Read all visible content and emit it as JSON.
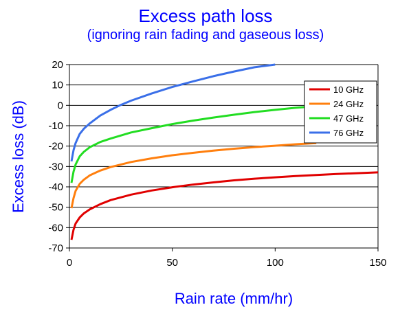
{
  "chart_data": {
    "type": "line",
    "title": "Excess path loss",
    "subtitle": "(ignoring rain fading and gaseous loss)",
    "xlabel": "Rain rate (mm/hr)",
    "ylabel": "Excess loss (dB)",
    "xlim": [
      0,
      150
    ],
    "ylim": [
      -70,
      20
    ],
    "xticks": [
      0,
      50,
      100,
      150
    ],
    "yticks": [
      20,
      10,
      0,
      -10,
      -20,
      -30,
      -40,
      -50,
      -60,
      -70
    ],
    "grid": "horizontal",
    "legend_position": "top-right",
    "series": [
      {
        "name": "10 GHz",
        "color": "#e00000",
        "x": [
          1,
          2,
          3,
          5,
          7,
          10,
          15,
          20,
          30,
          40,
          50,
          60,
          70,
          80,
          90,
          100,
          110,
          120,
          130,
          140,
          150
        ],
        "y": [
          -66,
          -61,
          -58,
          -55,
          -53,
          -51,
          -48.5,
          -46.5,
          -43.8,
          -41.8,
          -40.2,
          -38.9,
          -37.8,
          -36.8,
          -36.0,
          -35.3,
          -34.7,
          -34.2,
          -33.7,
          -33.3,
          -32.9
        ]
      },
      {
        "name": "24 GHz",
        "color": "#ff7f0e",
        "x": [
          1,
          2,
          3,
          5,
          7,
          10,
          15,
          20,
          30,
          40,
          50,
          60,
          70,
          80,
          90,
          100,
          110,
          120
        ],
        "y": [
          -50.5,
          -45.5,
          -42,
          -38.5,
          -36.5,
          -34.3,
          -32,
          -30.3,
          -27.8,
          -26,
          -24.5,
          -23.3,
          -22.2,
          -21.3,
          -20.5,
          -19.8,
          -19.1,
          -18.5
        ]
      },
      {
        "name": "47 GHz",
        "color": "#22dd22",
        "x": [
          1,
          2,
          3,
          5,
          7,
          10,
          15,
          20,
          30,
          40,
          50,
          60,
          70,
          80,
          90,
          100,
          110,
          115
        ],
        "y": [
          -38,
          -32.5,
          -29,
          -25,
          -22.8,
          -20.5,
          -18,
          -16.3,
          -13.3,
          -11.2,
          -9.2,
          -7.5,
          -6.0,
          -4.6,
          -3.3,
          -2.2,
          -1.2,
          -0.8
        ]
      },
      {
        "name": "76 GHz",
        "color": "#3a6fe8",
        "x": [
          1,
          2,
          3,
          5,
          7,
          10,
          15,
          20,
          25,
          30,
          40,
          50,
          60,
          70,
          80,
          90,
          100
        ],
        "y": [
          -27.5,
          -22,
          -18.5,
          -14,
          -11.5,
          -8.8,
          -5,
          -2.2,
          0.2,
          2.3,
          5.8,
          9.0,
          11.7,
          14.3,
          16.6,
          18.7,
          20
        ]
      }
    ]
  }
}
